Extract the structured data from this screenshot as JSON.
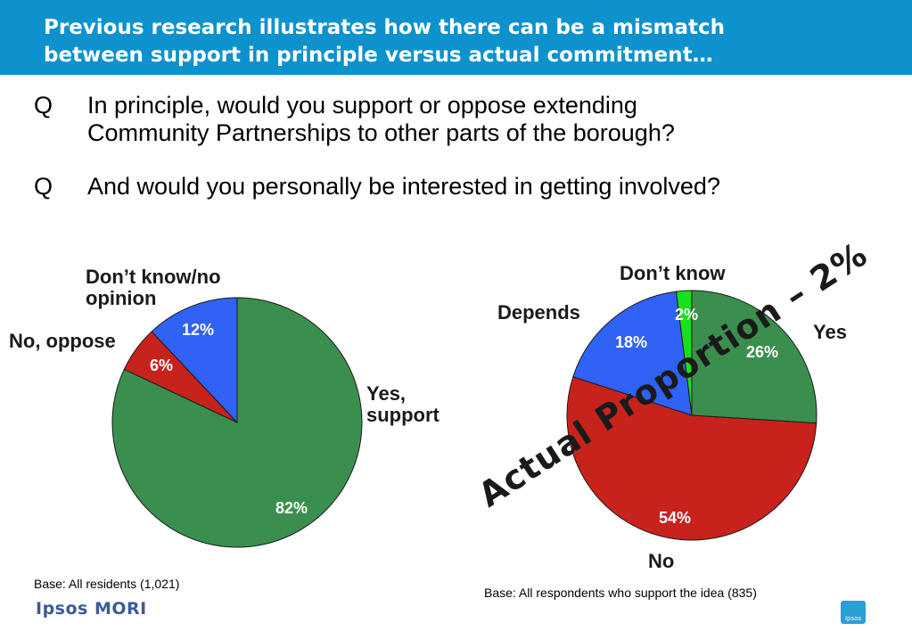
{
  "header": {
    "title_line1": "Previous research illustrates how there can be a mismatch",
    "title_line2": "between support in principle versus actual commitment…"
  },
  "questions": [
    {
      "mark": "Q",
      "line1": "In principle, would you support or oppose extending",
      "line2": "Community Partnerships to other parts of the borough?"
    },
    {
      "mark": "Q",
      "line1": "And would you personally be interested in getting involved?",
      "line2": ""
    }
  ],
  "chart_data": [
    {
      "type": "pie",
      "slices": [
        {
          "label": "Yes, support",
          "value": 82,
          "value_label": "82%",
          "color": "#3a8f4e"
        },
        {
          "label": "No, oppose",
          "value": 6,
          "value_label": "6%",
          "color": "#c8221c"
        },
        {
          "label": "Don’t know/no opinion",
          "value": 12,
          "value_label": "12%",
          "color": "#2f62f5"
        }
      ],
      "base_note": "Base: All residents (1,021)"
    },
    {
      "type": "pie",
      "slices": [
        {
          "label": "Yes",
          "value": 26,
          "value_label": "26%",
          "color": "#3a8f4e"
        },
        {
          "label": "No",
          "value": 54,
          "value_label": "54%",
          "color": "#c8221c"
        },
        {
          "label": "Depends",
          "value": 18,
          "value_label": "18%",
          "color": "#2f62f5"
        },
        {
          "label": "Don’t know",
          "value": 2,
          "value_label": "2%",
          "color": "#19e01c"
        }
      ],
      "annotation": "Actual Proportion – 2%",
      "base_note": "Base: All respondents who support the idea (835)"
    }
  ],
  "footer": {
    "logo_text": "Ipsos MORI",
    "badge_text": "Ipsos",
    "badge_color": "#2a9fd6"
  },
  "colors": {
    "header_bg": "#0d92cd"
  }
}
